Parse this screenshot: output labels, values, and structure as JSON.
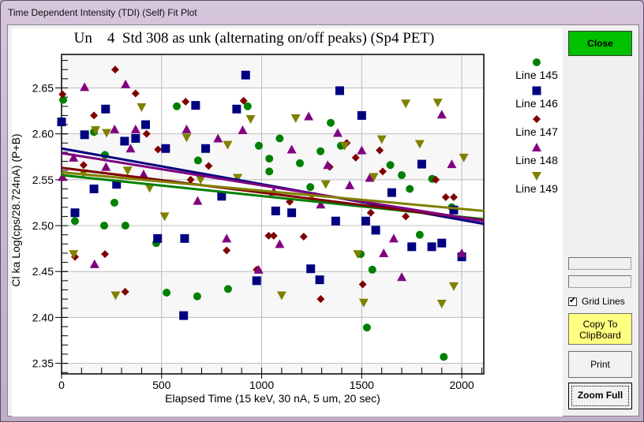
{
  "window": {
    "title": "Time Dependent Intensity (TDI) (Self) Fit Plot"
  },
  "buttons": {
    "close": "Close",
    "copy_line1": "Copy To",
    "copy_line2": "ClipBoard",
    "print": "Print",
    "zoom_full": "Zoom Full"
  },
  "options": {
    "grid_lines_label": "Grid Lines",
    "grid_lines_checked": true,
    "textbox1_value": "",
    "textbox2_value": ""
  },
  "colors": {
    "close_button": "#00c000",
    "copy_button": "#ffff80",
    "line145": "#008000",
    "line146": "#000080",
    "line147": "#800000",
    "line148": "#800080",
    "line149": "#808000"
  },
  "chart_data": {
    "type": "scatter",
    "title": "Un    4  Std 308 as unk (alternating on/off peaks) (Sp4 PET)",
    "xlabel": "Elapsed Time (15 keV, 30 nA, 5 um, 20 sec)",
    "ylabel": "Cl ka Log(cps/28.724nA) (P+B)",
    "xlim": [
      0,
      2110
    ],
    "ylim": [
      2.3385,
      2.6865
    ],
    "xticks": [
      0,
      500,
      1000,
      1500,
      2000
    ],
    "yticks": [
      2.35,
      2.4,
      2.45,
      2.5,
      2.55,
      2.6,
      2.65
    ],
    "ytick_labels": [
      "2.35",
      "2.40",
      "2.45",
      "2.50",
      "2.55",
      "2.60",
      "2.65"
    ],
    "xtick_labels": [
      "0",
      "500",
      "1000",
      "1500",
      "2000"
    ],
    "grid": true,
    "legend_position": "right",
    "series": [
      {
        "name": "Line 145",
        "marker": "circle",
        "color": "#008000",
        "fit": [
          [
            0,
            2.555
          ],
          [
            2110,
            2.507
          ]
        ],
        "points": [
          [
            8,
            2.637
          ],
          [
            67,
            2.505
          ],
          [
            162,
            2.602
          ],
          [
            213,
            2.5
          ],
          [
            217,
            2.577
          ],
          [
            264,
            2.525
          ],
          [
            319,
            2.5
          ],
          [
            473,
            2.481
          ],
          [
            525,
            2.427
          ],
          [
            576,
            2.63
          ],
          [
            678,
            2.423
          ],
          [
            682,
            2.571
          ],
          [
            832,
            2.431
          ],
          [
            930,
            2.63
          ],
          [
            986,
            2.587
          ],
          [
            1038,
            2.573
          ],
          [
            1038,
            2.559
          ],
          [
            1090,
            2.595
          ],
          [
            1191,
            2.568
          ],
          [
            1243,
            2.542
          ],
          [
            1294,
            2.581
          ],
          [
            1345,
            2.612
          ],
          [
            1396,
            2.587
          ],
          [
            1495,
            2.469
          ],
          [
            1526,
            2.389
          ],
          [
            1553,
            2.452
          ],
          [
            1643,
            2.566
          ],
          [
            1700,
            2.555
          ],
          [
            1740,
            2.54
          ],
          [
            1790,
            2.49
          ],
          [
            1852,
            2.551
          ],
          [
            1910,
            2.357
          ],
          [
            1950,
            2.52
          ]
        ]
      },
      {
        "name": "Line 146",
        "marker": "square",
        "color": "#000080",
        "fit": [
          [
            0,
            2.584
          ],
          [
            2110,
            2.502
          ]
        ],
        "points": [
          [
            0,
            2.613
          ],
          [
            67,
            2.514
          ],
          [
            115,
            2.599
          ],
          [
            162,
            2.54
          ],
          [
            220,
            2.627
          ],
          [
            275,
            2.545
          ],
          [
            315,
            2.592
          ],
          [
            370,
            2.595
          ],
          [
            420,
            2.61
          ],
          [
            480,
            2.486
          ],
          [
            520,
            2.584
          ],
          [
            610,
            2.402
          ],
          [
            615,
            2.486
          ],
          [
            670,
            2.631
          ],
          [
            720,
            2.584
          ],
          [
            800,
            2.532
          ],
          [
            875,
            2.627
          ],
          [
            920,
            2.664
          ],
          [
            975,
            2.44
          ],
          [
            1070,
            2.516
          ],
          [
            1150,
            2.514
          ],
          [
            1245,
            2.453
          ],
          [
            1290,
            2.441
          ],
          [
            1370,
            2.505
          ],
          [
            1390,
            2.647
          ],
          [
            1500,
            2.62
          ],
          [
            1520,
            2.505
          ],
          [
            1570,
            2.495
          ],
          [
            1650,
            2.536
          ],
          [
            1750,
            2.477
          ],
          [
            1800,
            2.567
          ],
          [
            1850,
            2.477
          ],
          [
            1900,
            2.481
          ],
          [
            1960,
            2.517
          ],
          [
            2000,
            2.466
          ]
        ]
      },
      {
        "name": "Line 147",
        "marker": "diamond",
        "color": "#800000",
        "fit": [
          [
            0,
            2.563
          ],
          [
            2110,
            2.506
          ]
        ],
        "points": [
          [
            5,
            2.643
          ],
          [
            67,
            2.466
          ],
          [
            110,
            2.566
          ],
          [
            162,
            2.62
          ],
          [
            217,
            2.469
          ],
          [
            268,
            2.67
          ],
          [
            318,
            2.428
          ],
          [
            370,
            2.644
          ],
          [
            425,
            2.6
          ],
          [
            482,
            2.583
          ],
          [
            620,
            2.635
          ],
          [
            645,
            2.55
          ],
          [
            735,
            2.565
          ],
          [
            825,
            2.473
          ],
          [
            910,
            2.636
          ],
          [
            975,
            2.452
          ],
          [
            1035,
            2.489
          ],
          [
            1060,
            2.489
          ],
          [
            1140,
            2.526
          ],
          [
            1210,
            2.488
          ],
          [
            1295,
            2.42
          ],
          [
            1340,
            2.564
          ],
          [
            1425,
            2.59
          ],
          [
            1470,
            2.574
          ],
          [
            1505,
            2.436
          ],
          [
            1545,
            2.514
          ],
          [
            1590,
            2.582
          ],
          [
            1605,
            2.559
          ],
          [
            1720,
            2.51
          ],
          [
            1870,
            2.55
          ],
          [
            1920,
            2.531
          ],
          [
            1960,
            2.531
          ]
        ]
      },
      {
        "name": "Line 148",
        "marker": "triangle-up",
        "color": "#800080",
        "fit": [
          [
            0,
            2.579
          ],
          [
            2110,
            2.505
          ]
        ],
        "points": [
          [
            5,
            2.553
          ],
          [
            60,
            2.574
          ],
          [
            115,
            2.651
          ],
          [
            165,
            2.458
          ],
          [
            222,
            2.564
          ],
          [
            265,
            2.605
          ],
          [
            320,
            2.654
          ],
          [
            345,
            2.584
          ],
          [
            370,
            2.605
          ],
          [
            410,
            2.556
          ],
          [
            625,
            2.605
          ],
          [
            680,
            2.527
          ],
          [
            782,
            2.595
          ],
          [
            825,
            2.486
          ],
          [
            905,
            2.604
          ],
          [
            985,
            2.452
          ],
          [
            1060,
            2.537
          ],
          [
            1090,
            2.48
          ],
          [
            1150,
            2.583
          ],
          [
            1235,
            2.619
          ],
          [
            1295,
            2.523
          ],
          [
            1330,
            2.566
          ],
          [
            1380,
            2.601
          ],
          [
            1440,
            2.544
          ],
          [
            1500,
            2.582
          ],
          [
            1540,
            2.552
          ],
          [
            1610,
            2.47
          ],
          [
            1660,
            2.486
          ],
          [
            1700,
            2.444
          ],
          [
            1900,
            2.621
          ],
          [
            1950,
            2.567
          ],
          [
            2000,
            2.47
          ]
        ]
      },
      {
        "name": "Line 149",
        "marker": "triangle-down",
        "color": "#808000",
        "fit": [
          [
            0,
            2.558
          ],
          [
            2110,
            2.516
          ]
        ],
        "points": [
          [
            60,
            2.469
          ],
          [
            110,
            2.557
          ],
          [
            170,
            2.604
          ],
          [
            225,
            2.601
          ],
          [
            270,
            2.424
          ],
          [
            330,
            2.56
          ],
          [
            400,
            2.629
          ],
          [
            440,
            2.541
          ],
          [
            515,
            2.51
          ],
          [
            625,
            2.596
          ],
          [
            695,
            2.55
          ],
          [
            830,
            2.588
          ],
          [
            880,
            2.552
          ],
          [
            945,
            2.616
          ],
          [
            1100,
            2.424
          ],
          [
            1170,
            2.617
          ],
          [
            1250,
            2.532
          ],
          [
            1320,
            2.545
          ],
          [
            1415,
            2.587
          ],
          [
            1480,
            2.469
          ],
          [
            1510,
            2.416
          ],
          [
            1560,
            2.553
          ],
          [
            1600,
            2.594
          ],
          [
            1720,
            2.633
          ],
          [
            1790,
            2.589
          ],
          [
            1880,
            2.634
          ],
          [
            1900,
            2.415
          ],
          [
            1960,
            2.434
          ],
          [
            2010,
            2.574
          ]
        ]
      }
    ]
  }
}
